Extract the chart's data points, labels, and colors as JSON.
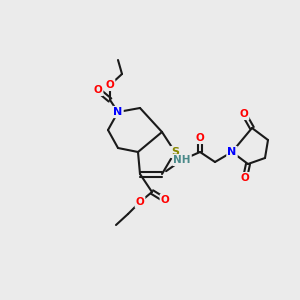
{
  "bg_color": "#ebebeb",
  "bond_color": "#1a1a1a",
  "atom_colors": {
    "N": "#0000ff",
    "O": "#ff0000",
    "S": "#888800",
    "H": "#4a8a8a",
    "C": "#1a1a1a"
  },
  "bond_width": 1.5,
  "font_size": 7.5
}
